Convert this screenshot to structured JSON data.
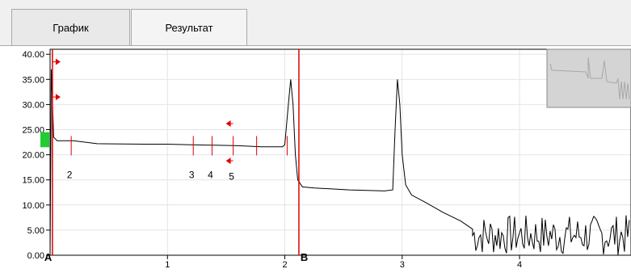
{
  "tabs": [
    {
      "label": "График",
      "active": true
    },
    {
      "label": "Результат",
      "active": false
    }
  ],
  "chart_data": {
    "type": "line",
    "title": "",
    "xlabel": "",
    "ylabel": "",
    "xlim": [
      0,
      4.95
    ],
    "ylim": [
      0,
      41
    ],
    "grid": true,
    "y_ticks": [
      "0.00",
      "5.00",
      "10.00",
      "15.00",
      "20.00",
      "25.00",
      "30.00",
      "35.00",
      "40.00"
    ],
    "x_ticks": [
      "1",
      "2",
      "3",
      "4"
    ],
    "series": [
      {
        "color": "#000000",
        "points": [
          [
            0,
            0
          ],
          [
            0.01,
            37
          ],
          [
            0.03,
            23.5
          ],
          [
            0.06,
            22.8
          ],
          [
            0.2,
            22.8
          ],
          [
            0.4,
            22.2
          ],
          [
            0.8,
            22.1
          ],
          [
            1.0,
            22.1
          ],
          [
            1.2,
            22.0
          ],
          [
            1.4,
            21.9
          ],
          [
            1.6,
            21.8
          ],
          [
            1.8,
            21.6
          ],
          [
            1.98,
            21.6
          ],
          [
            2.0,
            22.0
          ],
          [
            2.03,
            30
          ],
          [
            2.05,
            35
          ],
          [
            2.07,
            30
          ],
          [
            2.09,
            20
          ],
          [
            2.11,
            15
          ],
          [
            2.15,
            13.6
          ],
          [
            2.25,
            13.4
          ],
          [
            2.4,
            13.2
          ],
          [
            2.55,
            13.0
          ],
          [
            2.7,
            12.9
          ],
          [
            2.85,
            12.8
          ],
          [
            2.92,
            13.0
          ],
          [
            2.94,
            25
          ],
          [
            2.96,
            35
          ],
          [
            2.98,
            30
          ],
          [
            3.0,
            20
          ],
          [
            3.03,
            14
          ],
          [
            3.08,
            12
          ],
          [
            3.2,
            10.5
          ],
          [
            3.35,
            8.5
          ],
          [
            3.5,
            6.8
          ],
          [
            3.6,
            5.2
          ]
        ]
      }
    ],
    "noise": {
      "x_start": 3.6,
      "x_end": 4.95,
      "y_min": 0,
      "y_max": 8
    },
    "events": [
      {
        "label": "2",
        "x": 0.18
      },
      {
        "label": "3",
        "x": 1.22
      },
      {
        "label": "4",
        "x": 1.38
      },
      {
        "label": "5",
        "x": 1.56
      },
      {
        "label": "",
        "x": 1.76
      },
      {
        "label": "",
        "x": 2.02
      }
    ],
    "markers": [
      {
        "label": "A",
        "x": 0.02,
        "color": "#e00000"
      },
      {
        "label": "B",
        "x": 2.12,
        "color": "#e00000"
      }
    ],
    "colors": {
      "grid": "#e4e4e4",
      "trace": "#000000",
      "event": "#e00000",
      "overview": "#d4d4d4",
      "handle": "#22cc33"
    }
  }
}
